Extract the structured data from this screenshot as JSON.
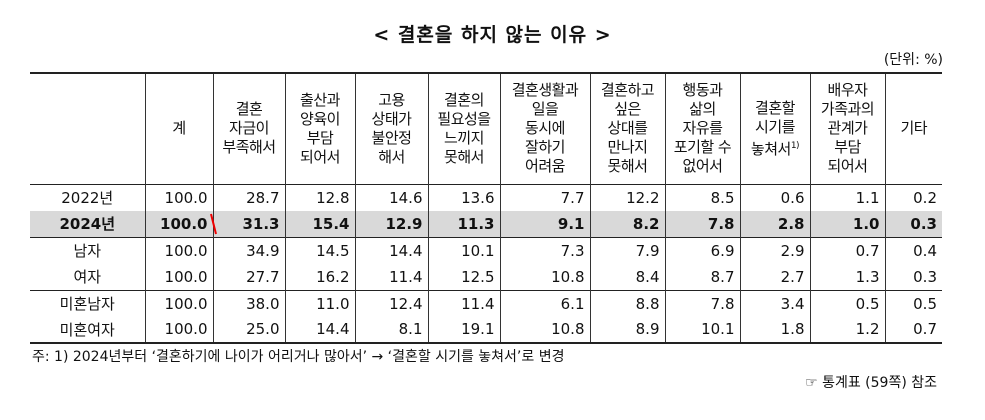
{
  "title": "< 결혼을 하지 않는 이유 >",
  "unit": "(단위: %)",
  "table": {
    "headers": [
      "계",
      "결혼\n자금이\n부족해서",
      "출산과\n양육이\n부담\n되어서",
      "고용\n상태가\n불안정\n해서",
      "결혼의\n필요성을\n느끼지\n못해서",
      "결혼생활과\n일을\n동시에\n잘하기\n어려움",
      "결혼하고\n싶은\n상대를\n만나지\n못해서",
      "행동과\n삶의\n자유를\n포기할 수\n없어서",
      "결혼할\n시기를\n놓쳐서",
      "배우자\n가족과의\n관계가\n부담\n되어서",
      "기타"
    ],
    "header_note": "1)",
    "rows": [
      [
        "2022년",
        "100.0",
        "28.7",
        "12.8",
        "14.6",
        "13.6",
        "7.7",
        "12.2",
        "8.5",
        "0.6",
        "1.1",
        "0.2"
      ],
      [
        "2024년",
        "100.0",
        "31.3",
        "15.4",
        "12.9",
        "11.3",
        "9.1",
        "8.2",
        "7.8",
        "2.8",
        "1.0",
        "0.3"
      ],
      [
        "남자",
        "100.0",
        "34.9",
        "14.5",
        "14.4",
        "10.1",
        "7.3",
        "7.9",
        "6.9",
        "2.9",
        "0.7",
        "0.4"
      ],
      [
        "여자",
        "100.0",
        "27.7",
        "16.2",
        "11.4",
        "12.5",
        "10.8",
        "8.4",
        "8.7",
        "2.7",
        "1.3",
        "0.3"
      ],
      [
        "미혼남자",
        "100.0",
        "38.0",
        "11.0",
        "12.4",
        "11.4",
        "6.1",
        "8.8",
        "7.8",
        "3.4",
        "0.5",
        "0.5"
      ],
      [
        "미혼여자",
        "100.0",
        "25.0",
        "14.4",
        "8.1",
        "19.1",
        "10.8",
        "8.9",
        "10.1",
        "1.8",
        "1.2",
        "0.7"
      ]
    ]
  },
  "footnote": "주: 1) 2024년부터 ‘결혼하기에 나이가 어리거나 많아서’ → ‘결혼할 시기를 놓쳐서’로 변경",
  "source": "☞ 통계표 (59쪽) 참조"
}
